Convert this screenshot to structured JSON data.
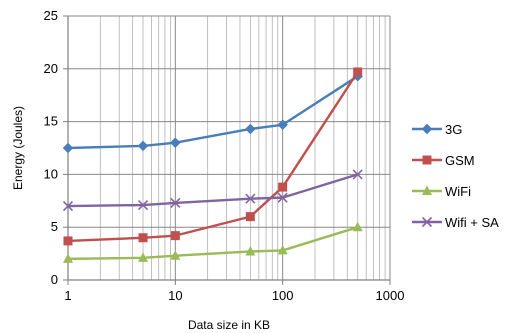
{
  "chart_data": {
    "type": "line",
    "xlabel": "Data size in KB",
    "ylabel": "Energy (Joules)",
    "xscale": "log",
    "xlim": [
      1,
      1000
    ],
    "ylim": [
      0,
      25
    ],
    "xticks": [
      1,
      10,
      100,
      1000
    ],
    "xtick_labels": [
      "1",
      "10",
      "100",
      "1000"
    ],
    "yticks": [
      0,
      5,
      10,
      15,
      20,
      25
    ],
    "ytick_labels": [
      "0",
      "5",
      "10",
      "15",
      "20",
      "25"
    ],
    "grid": true,
    "legend_position": "right",
    "x": [
      1,
      5,
      10,
      50,
      100,
      500
    ],
    "series": [
      {
        "name": "3G",
        "values": [
          12.5,
          12.7,
          13.0,
          14.3,
          14.7,
          19.3
        ],
        "color": "#4a7ebb",
        "marker": "diamond"
      },
      {
        "name": "GSM",
        "values": [
          3.7,
          4.0,
          4.2,
          6.0,
          8.8,
          19.7
        ],
        "color": "#c0504d",
        "marker": "square"
      },
      {
        "name": "WiFi",
        "values": [
          2.0,
          2.1,
          2.3,
          2.7,
          2.8,
          5.0
        ],
        "color": "#9bbb59",
        "marker": "triangle"
      },
      {
        "name": "Wifi + SA",
        "values": [
          7.0,
          7.1,
          7.3,
          7.7,
          7.8,
          10.0
        ],
        "color": "#8064a2",
        "marker": "x"
      }
    ]
  }
}
